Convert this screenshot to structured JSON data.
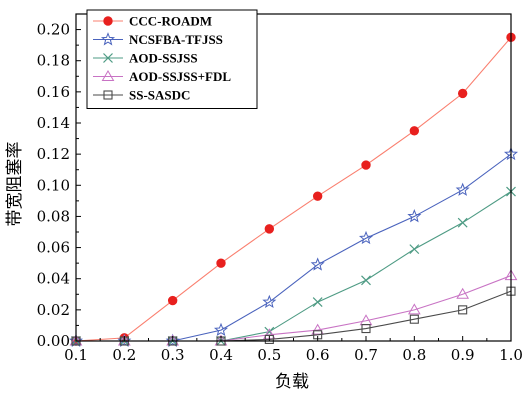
{
  "chart_data": {
    "type": "line",
    "xlabel": "负载",
    "ylabel": "带宽阻塞率",
    "xlim": [
      0.1,
      1.0
    ],
    "ylim": [
      0,
      0.21
    ],
    "x_ticks": [
      "0.1",
      "0.2",
      "0.3",
      "0.4",
      "0.5",
      "0.6",
      "0.7",
      "0.8",
      "0.9",
      "1.0"
    ],
    "y_ticks": [
      "0.00",
      "0.02",
      "0.04",
      "0.06",
      "0.08",
      "0.10",
      "0.12",
      "0.14",
      "0.16",
      "0.18",
      "0.20"
    ],
    "x": [
      0.1,
      0.2,
      0.3,
      0.4,
      0.5,
      0.6,
      0.7,
      0.8,
      0.9,
      1.0
    ],
    "legend_position": "top-left",
    "series": [
      {
        "name": "CCC-ROADM",
        "marker": "filled-circle",
        "color": "#fa7f6f",
        "marker_color": "#e8201e",
        "values": [
          0,
          0.002,
          0.026,
          0.05,
          0.072,
          0.093,
          0.113,
          0.135,
          0.159,
          0.195
        ]
      },
      {
        "name": "NCSFBA-TFJSS",
        "marker": "star",
        "color": "#4a63bd",
        "values": [
          0,
          0,
          0,
          0.007,
          0.025,
          0.049,
          0.066,
          0.08,
          0.097,
          0.12
        ]
      },
      {
        "name": "AOD-SSJSS",
        "marker": "x",
        "color": "#4e9b84",
        "values": [
          0,
          0,
          0,
          0,
          0.006,
          0.025,
          0.039,
          0.059,
          0.076,
          0.096
        ]
      },
      {
        "name": "AOD-SSJSS+FDL",
        "marker": "triangle",
        "color": "#c873c4",
        "values": [
          0,
          0,
          0,
          0,
          0.004,
          0.007,
          0.013,
          0.02,
          0.03,
          0.042
        ]
      },
      {
        "name": "SS-SASDC",
        "marker": "open-square",
        "color": "#4a4a4a",
        "values": [
          0,
          0,
          0,
          0,
          0.001,
          0.004,
          0.008,
          0.014,
          0.02,
          0.032
        ]
      }
    ]
  }
}
